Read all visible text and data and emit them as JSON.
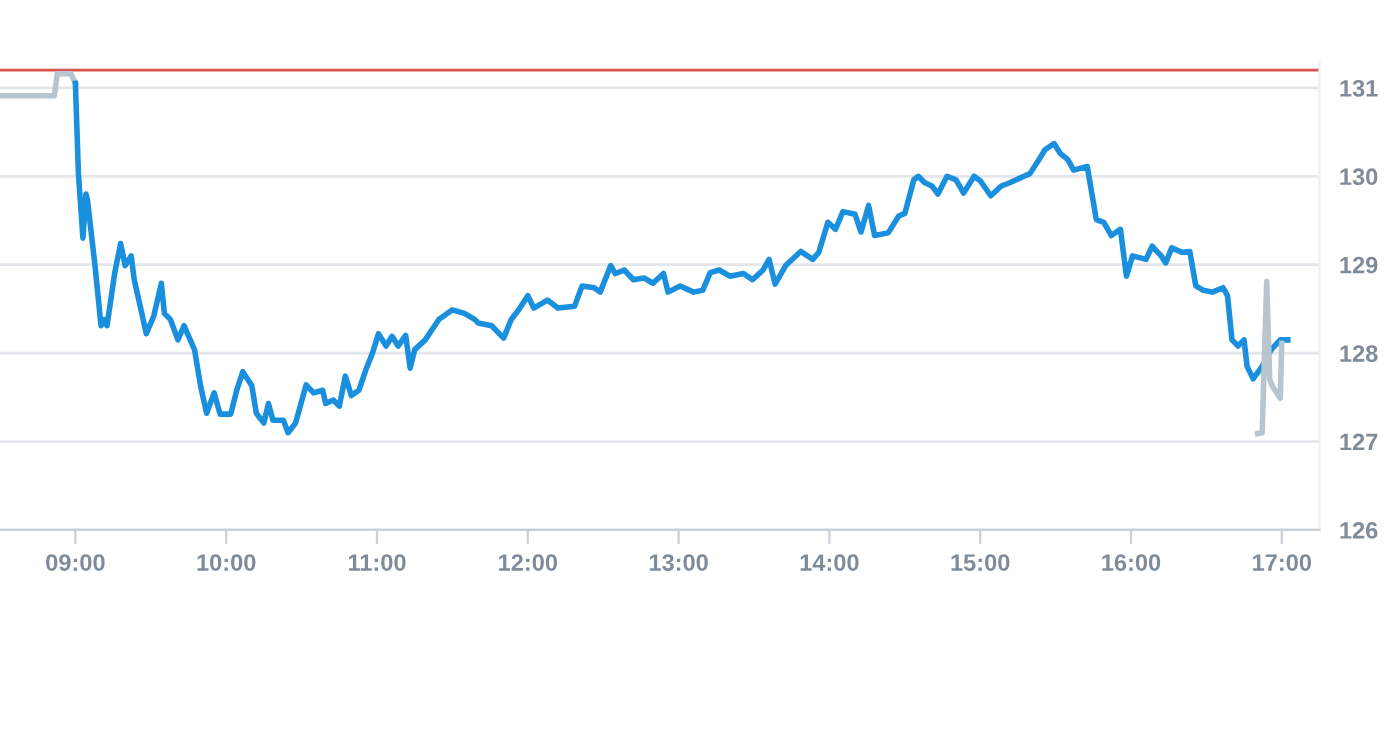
{
  "chart_data": {
    "type": "line",
    "xlim": [
      8.5,
      17.25
    ],
    "ylim": [
      126,
      131.3
    ],
    "xticks": [
      {
        "value": 9,
        "label": "09:00"
      },
      {
        "value": 10,
        "label": "10:00"
      },
      {
        "value": 11,
        "label": "11:00"
      },
      {
        "value": 12,
        "label": "12:00"
      },
      {
        "value": 13,
        "label": "13:00"
      },
      {
        "value": 14,
        "label": "14:00"
      },
      {
        "value": 15,
        "label": "15:00"
      },
      {
        "value": 16,
        "label": "16:00"
      },
      {
        "value": 17,
        "label": "17:00"
      }
    ],
    "yticks": [
      126,
      127,
      128,
      129,
      130,
      131
    ],
    "grid": "y",
    "marker": "none",
    "line_style": "solid",
    "ref_lines": [
      {
        "axis": "y",
        "value": 131.2,
        "color": "#d9534f"
      }
    ],
    "series": [
      {
        "color": "#b8c4ce",
        "x": [
          8.51,
          8.86,
          8.88,
          8.97,
          9.0
        ],
        "values": [
          130.91,
          130.91,
          131.16,
          131.16,
          131.05
        ]
      },
      {
        "color": "#1a8fdd",
        "x": [
          9.0,
          9.02,
          9.05,
          9.07,
          9.08,
          9.13,
          9.17,
          9.19,
          9.21,
          9.26,
          9.3,
          9.33,
          9.37,
          9.39,
          9.43,
          9.47,
          9.52,
          9.57,
          9.59,
          9.63,
          9.68,
          9.72,
          9.79,
          9.83,
          9.87,
          9.92,
          9.96,
          10.03,
          10.07,
          10.11,
          10.17,
          10.2,
          10.25,
          10.28,
          10.31,
          10.38,
          10.41,
          10.46,
          10.53,
          10.58,
          10.64,
          10.66,
          10.71,
          10.75,
          10.79,
          10.83,
          10.88,
          10.93,
          10.97,
          11.01,
          11.06,
          11.1,
          11.14,
          11.19,
          11.22,
          11.25,
          11.32,
          11.41,
          11.5,
          11.58,
          11.65,
          11.67,
          11.76,
          11.84,
          11.89,
          11.94,
          12.0,
          12.04,
          12.13,
          12.2,
          12.31,
          12.36,
          12.44,
          12.48,
          12.55,
          12.58,
          12.64,
          12.7,
          12.77,
          12.83,
          12.9,
          12.93,
          13.01,
          13.1,
          13.16,
          13.21,
          13.27,
          13.34,
          13.43,
          13.49,
          13.56,
          13.6,
          13.64,
          13.71,
          13.81,
          13.89,
          13.93,
          13.99,
          14.04,
          14.09,
          14.17,
          14.21,
          14.26,
          14.3,
          14.39,
          14.46,
          14.5,
          14.56,
          14.59,
          14.63,
          14.68,
          14.72,
          14.78,
          14.84,
          14.89,
          14.96,
          15.0,
          15.07,
          15.14,
          15.2,
          15.29,
          15.33,
          15.39,
          15.43,
          15.49,
          15.53,
          15.58,
          15.62,
          15.71,
          15.77,
          15.82,
          15.87,
          15.93,
          15.97,
          16.01,
          16.1,
          16.14,
          16.2,
          16.23,
          16.27,
          16.34,
          16.39,
          16.43,
          16.48,
          16.54,
          16.61,
          16.64,
          16.67,
          16.71,
          16.75,
          16.77,
          16.81,
          16.87,
          16.93,
          16.99,
          17.04
        ],
        "values": [
          131.05,
          130.03,
          129.3,
          129.8,
          129.73,
          128.99,
          128.31,
          128.38,
          128.31,
          128.9,
          129.24,
          128.99,
          129.1,
          128.83,
          128.53,
          128.22,
          128.42,
          128.79,
          128.45,
          128.38,
          128.15,
          128.31,
          128.04,
          127.63,
          127.32,
          127.55,
          127.31,
          127.31,
          127.58,
          127.79,
          127.63,
          127.32,
          127.21,
          127.43,
          127.24,
          127.24,
          127.1,
          127.21,
          127.64,
          127.55,
          127.58,
          127.43,
          127.47,
          127.4,
          127.74,
          127.52,
          127.58,
          127.83,
          128.0,
          128.22,
          128.08,
          128.19,
          128.08,
          128.2,
          127.83,
          128.04,
          128.15,
          128.38,
          128.49,
          128.45,
          128.38,
          128.34,
          128.31,
          128.17,
          128.38,
          128.49,
          128.65,
          128.51,
          128.6,
          128.51,
          128.53,
          128.76,
          128.74,
          128.69,
          128.99,
          128.9,
          128.94,
          128.83,
          128.85,
          128.79,
          128.9,
          128.69,
          128.76,
          128.69,
          128.71,
          128.91,
          128.94,
          128.87,
          128.9,
          128.83,
          128.94,
          129.06,
          128.78,
          128.99,
          129.15,
          129.06,
          129.14,
          129.48,
          129.4,
          129.6,
          129.57,
          129.37,
          129.67,
          129.33,
          129.36,
          129.55,
          129.58,
          129.96,
          130.0,
          129.93,
          129.89,
          129.8,
          130.0,
          129.96,
          129.81,
          130.0,
          129.95,
          129.78,
          129.89,
          129.93,
          130.0,
          130.03,
          130.19,
          130.3,
          130.37,
          130.26,
          130.19,
          130.07,
          130.11,
          129.51,
          129.48,
          129.33,
          129.4,
          128.87,
          129.1,
          129.06,
          129.21,
          129.1,
          129.02,
          129.19,
          129.14,
          129.15,
          128.76,
          128.71,
          128.69,
          128.74,
          128.65,
          128.15,
          128.08,
          128.15,
          127.85,
          127.71,
          127.85,
          128.04,
          128.15,
          128.15
        ]
      },
      {
        "color": "#b8c4ce",
        "x": [
          16.84,
          16.87,
          16.9,
          16.92,
          16.94,
          16.99,
          17.0
        ],
        "values": [
          127.09,
          127.1,
          128.81,
          127.7,
          127.62,
          127.49,
          128.11
        ]
      }
    ]
  }
}
